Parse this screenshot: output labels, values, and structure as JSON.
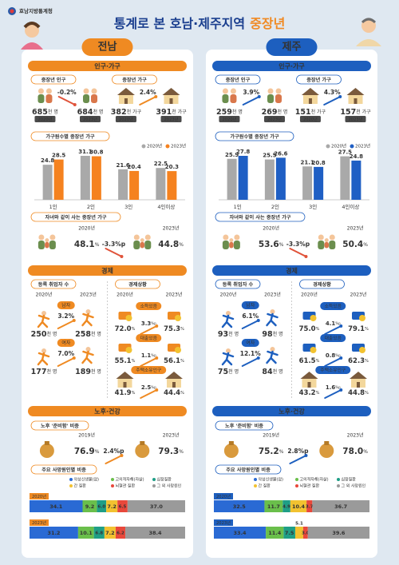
{
  "header": {
    "agency": "호남지방통계청",
    "title": "통계로 본 호남·제주지역",
    "title_highlight": "중장년"
  },
  "regions": [
    {
      "name": "전남",
      "population_section": "인구·가구",
      "population": {
        "title": "중장년 인구",
        "from": {
          "value": "685",
          "unit": "천 명",
          "year": "2020년"
        },
        "change": "-0.2%",
        "to": {
          "value": "684",
          "unit": "천 명",
          "year": "2023년"
        }
      },
      "households": {
        "title": "중장년 가구",
        "from": {
          "value": "382",
          "unit": "천 가구",
          "year": "2020년"
        },
        "change": "2.4%",
        "to": {
          "value": "391",
          "unit": "천 가구",
          "year": "2023년"
        }
      },
      "household_size": {
        "title": "가구원수별 중장년 가구",
        "categories": [
          "1인",
          "2인",
          "3인",
          "4인이상"
        ],
        "series": [
          {
            "name": "2020년",
            "color": "#a9a9a9",
            "values": [
              24.8,
              31.1,
              21.6,
              22.5
            ]
          },
          {
            "name": "2023년",
            "color": "#f5821f",
            "values": [
              28.5,
              30.8,
              20.4,
              20.3
            ]
          }
        ]
      },
      "with_children": {
        "title": "자녀와 같이 사는 중장년 가구",
        "from": {
          "value": "48.1",
          "unit": "%",
          "year": "2020년"
        },
        "change": "-3.3%p",
        "to": {
          "value": "44.8",
          "unit": "%",
          "year": "2023년"
        }
      },
      "economy_section": "경제",
      "employed": {
        "title": "등록 취업자 수",
        "years": [
          "2020년",
          "2023년"
        ],
        "unit": "천 명",
        "groups": [
          {
            "label": "남자",
            "from": "250",
            "change": "3.2%",
            "to": "258"
          },
          {
            "label": "여자",
            "from": "177",
            "change": "7.0%",
            "to": "189"
          }
        ]
      },
      "economic_status": {
        "title": "경제상황",
        "years": [
          "2020년",
          "2023년"
        ],
        "unit": "%",
        "change_unit": "%p",
        "items": [
          {
            "label": "소득있음",
            "from": "72.0",
            "change": "3.3",
            "to": "75.3"
          },
          {
            "label": "대출있음",
            "from": "55.1",
            "change": "1.1",
            "to": "56.1"
          },
          {
            "label": "주택소유인구",
            "from": "41.9",
            "change": "2.5",
            "to": "44.4"
          }
        ]
      },
      "aging_section": "노후·건강",
      "retirement": {
        "title": "노후 '준비함' 비중",
        "from": {
          "value": "76.9",
          "unit": "%",
          "year": "2019년"
        },
        "change": "2.4%p",
        "to": {
          "value": "79.3",
          "unit": "%",
          "year": "2023년"
        }
      },
      "death_causes": {
        "title": "주요 사망원인별 비중",
        "causes": [
          {
            "name": "악성신생물(암)",
            "color": "#2a6ad4"
          },
          {
            "name": "고의적자해(자살)",
            "color": "#6abf4b"
          },
          {
            "name": "심장질환",
            "color": "#1f9e86"
          },
          {
            "name": "간 질환",
            "color": "#f2c230"
          },
          {
            "name": "뇌혈관 질환",
            "color": "#e8483b"
          },
          {
            "name": "그 외 사망원인",
            "color": "#9a9a9a"
          }
        ],
        "rows": [
          {
            "year": "2020년",
            "values": [
              34.1,
              9.2,
              6.0,
              7.2,
              6.5,
              37.0
            ],
            "value_labels": [
              "34.1",
              "9.2",
              "6.0",
              "7.2",
              "6.5",
              "37.0"
            ]
          },
          {
            "year": "2023년",
            "values": [
              31.2,
              10.1,
              6.8,
              7.2,
              6.2,
              38.4
            ],
            "value_labels": [
              "31.2",
              "10.1",
              "6.8",
              "7.2",
              "6.2",
              "38.4"
            ]
          }
        ]
      }
    },
    {
      "name": "제주",
      "population_section": "인구·가구",
      "population": {
        "title": "중장년 인구",
        "from": {
          "value": "259",
          "unit": "천 명",
          "year": "2020년"
        },
        "change": "3.9%",
        "to": {
          "value": "269",
          "unit": "천 명",
          "year": "2023년"
        }
      },
      "households": {
        "title": "중장년 가구",
        "from": {
          "value": "151",
          "unit": "천 가구",
          "year": "2020년"
        },
        "change": "4.3%",
        "to": {
          "value": "157",
          "unit": "천 가구",
          "year": "2023년"
        }
      },
      "household_size": {
        "title": "가구원수별 중장년 가구",
        "categories": [
          "1인",
          "2인",
          "3인",
          "4인이상"
        ],
        "series": [
          {
            "name": "2020년",
            "color": "#a9a9a9",
            "values": [
              25.9,
              25.5,
              21.1,
              27.5
            ]
          },
          {
            "name": "2023년",
            "color": "#1f5fc4",
            "values": [
              27.8,
              26.6,
              20.8,
              24.8
            ]
          }
        ]
      },
      "with_children": {
        "title": "자녀와 같이 사는 중장년 가구",
        "from": {
          "value": "53.6",
          "unit": "%",
          "year": "2020년"
        },
        "change": "-3.3%p",
        "to": {
          "value": "50.4",
          "unit": "%",
          "year": "2023년"
        }
      },
      "economy_section": "경제",
      "employed": {
        "title": "등록 취업자 수",
        "years": [
          "2020년",
          "2023년"
        ],
        "unit": "천 명",
        "groups": [
          {
            "label": "남자",
            "from": "93",
            "change": "6.1%",
            "to": "98"
          },
          {
            "label": "여자",
            "from": "75",
            "change": "12.1%",
            "to": "84"
          }
        ]
      },
      "economic_status": {
        "title": "경제상황",
        "years": [
          "2020년",
          "2023년"
        ],
        "unit": "%",
        "change_unit": "%p",
        "items": [
          {
            "label": "소득있음",
            "from": "75.0",
            "change": "4.1",
            "to": "79.1"
          },
          {
            "label": "대출있음",
            "from": "61.5",
            "change": "0.8",
            "to": "62.3"
          },
          {
            "label": "주택소유인구",
            "from": "43.2",
            "change": "1.6",
            "to": "44.8"
          }
        ]
      },
      "aging_section": "노후·건강",
      "retirement": {
        "title": "노후 '준비함' 비중",
        "from": {
          "value": "75.2",
          "unit": "%",
          "year": "2019년"
        },
        "change": "2.8%p",
        "to": {
          "value": "78.0",
          "unit": "%",
          "year": "2023년"
        }
      },
      "death_causes": {
        "title": "주요 사망원인별 비중",
        "causes": [
          {
            "name": "악성신생물(암)",
            "color": "#2a6ad4"
          },
          {
            "name": "고의적자해(자살)",
            "color": "#6abf4b"
          },
          {
            "name": "심장질환",
            "color": "#1f9e86"
          },
          {
            "name": "간 질환",
            "color": "#f2c230"
          },
          {
            "name": "뇌혈관 질환",
            "color": "#e8483b"
          },
          {
            "name": "그 외 사망원인",
            "color": "#9a9a9a"
          }
        ],
        "rows": [
          {
            "year": "2020년",
            "values": [
              32.5,
              11.7,
              4.9,
              10.4,
              3.7,
              36.7
            ],
            "value_labels": [
              "32.5",
              "11.7",
              "4.9",
              "10.4",
              "3.7",
              "36.7"
            ]
          },
          {
            "year": "2023년",
            "values": [
              33.4,
              11.4,
              7.5,
              5.1,
              3.0,
              39.6
            ],
            "value_labels": [
              "33.4",
              "11.4",
              "7.5",
              "5.1",
              "3.0",
              "39.6"
            ]
          }
        ]
      }
    }
  ]
}
